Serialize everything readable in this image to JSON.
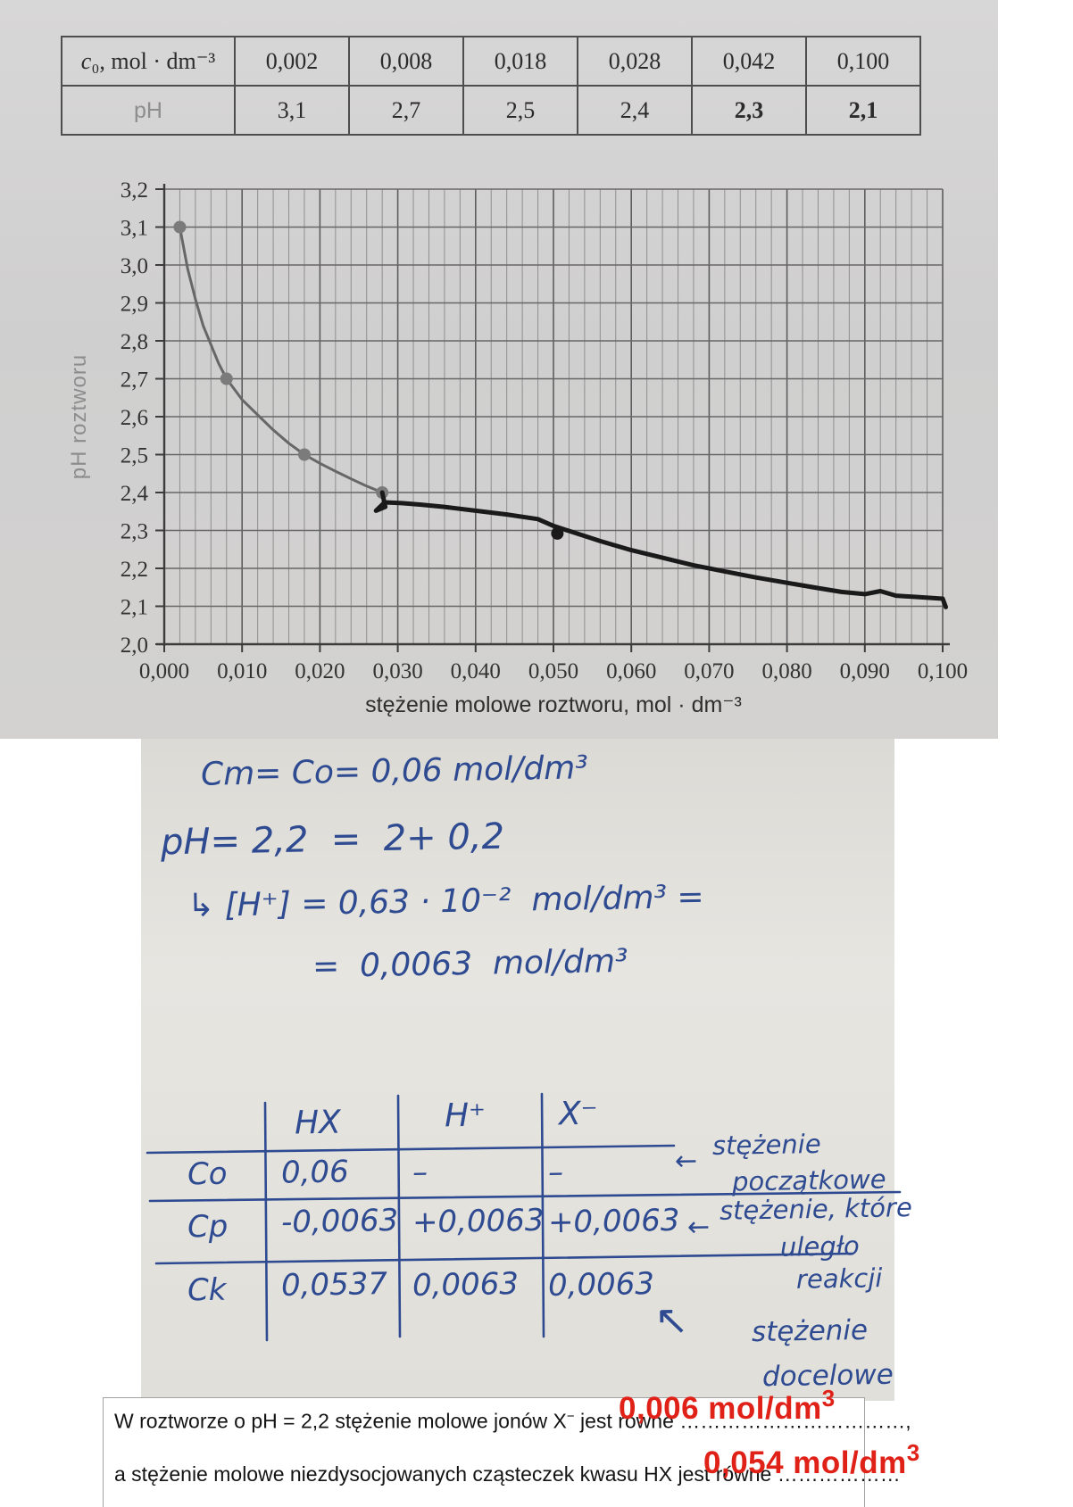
{
  "top_table": {
    "header": {
      "sym": "c",
      "rest": "₀, mol · dm⁻³"
    },
    "c0_values": [
      "0,002",
      "0,008",
      "0,018",
      "0,028",
      "0,042",
      "0,100"
    ],
    "ph_label": "pH",
    "ph_values": [
      {
        "v": "3,1"
      },
      {
        "v": "2,7"
      },
      {
        "v": "2,5"
      },
      {
        "v": "2,4"
      },
      {
        "v": "2,3",
        "red": true
      },
      {
        "v": "2,1",
        "red": true
      }
    ],
    "red_color": "#e02117"
  },
  "chart_data": {
    "type": "line",
    "title": "",
    "xlabel": "stężenie molowe roztworu, mol · dm⁻³",
    "ylabel": "pH roztworu",
    "xlim": [
      0.0,
      0.1
    ],
    "ylim": [
      2.0,
      3.2
    ],
    "x_minor_step": 0.002,
    "x_major_step": 0.01,
    "y_major_step": 0.1,
    "grid": true,
    "legend": false,
    "x_tick_labels": [
      "0,000",
      "0,010",
      "0,020",
      "0,030",
      "0,040",
      "0,050",
      "0,060",
      "0,070",
      "0,080",
      "0,090",
      "0,100"
    ],
    "y_tick_labels": [
      "2,0",
      "2,1",
      "2,2",
      "2,3",
      "2,4",
      "2,5",
      "2,6",
      "2,7",
      "2,8",
      "2,9",
      "3,0",
      "3,1",
      "3,2"
    ],
    "series": [
      {
        "name": "printed curve (measured points)",
        "color": "#676767",
        "marker_color": "#7b7b7b",
        "width": 3,
        "markers": true,
        "points": [
          [
            0.002,
            3.1
          ],
          [
            0.008,
            2.7
          ],
          [
            0.018,
            2.5
          ],
          [
            0.028,
            2.4
          ]
        ],
        "shape_points": [
          [
            0.002,
            3.1
          ],
          [
            0.003,
            2.99
          ],
          [
            0.004,
            2.91
          ],
          [
            0.005,
            2.84
          ],
          [
            0.006,
            2.79
          ],
          [
            0.007,
            2.74
          ],
          [
            0.008,
            2.7
          ],
          [
            0.01,
            2.645
          ],
          [
            0.012,
            2.605
          ],
          [
            0.014,
            2.565
          ],
          [
            0.016,
            2.53
          ],
          [
            0.018,
            2.5
          ],
          [
            0.02,
            2.477
          ],
          [
            0.022,
            2.456
          ],
          [
            0.024,
            2.436
          ],
          [
            0.026,
            2.417
          ],
          [
            0.028,
            2.4
          ]
        ]
      },
      {
        "name": "hand-drawn extension",
        "color": "#1a1a1a",
        "width": 5,
        "markers": false,
        "extra_marker": [
          0.0505,
          2.292
        ],
        "points": [
          [
            0.028,
            2.4
          ],
          [
            0.0284,
            2.362
          ],
          [
            0.0272,
            2.352
          ],
          [
            0.0283,
            2.374
          ],
          [
            0.0305,
            2.372
          ],
          [
            0.033,
            2.368
          ],
          [
            0.036,
            2.362
          ],
          [
            0.04,
            2.352
          ],
          [
            0.044,
            2.342
          ],
          [
            0.048,
            2.33
          ],
          [
            0.05,
            2.312
          ],
          [
            0.053,
            2.292
          ],
          [
            0.056,
            2.272
          ],
          [
            0.06,
            2.248
          ],
          [
            0.064,
            2.228
          ],
          [
            0.068,
            2.208
          ],
          [
            0.072,
            2.192
          ],
          [
            0.076,
            2.176
          ],
          [
            0.08,
            2.162
          ],
          [
            0.084,
            2.148
          ],
          [
            0.087,
            2.138
          ],
          [
            0.09,
            2.132
          ],
          [
            0.092,
            2.14
          ],
          [
            0.094,
            2.128
          ],
          [
            0.097,
            2.124
          ],
          [
            0.1,
            2.12
          ],
          [
            0.1004,
            2.098
          ]
        ]
      }
    ]
  },
  "handwritten": {
    "ink_color": "#2e4a91",
    "work_lines": [
      "Cm= Co= 0,06 mol/dm³",
      "pH= 2,2  =  2+ 0,2",
      "↳ [H⁺] = 0,63 · 10⁻²  mol/dm³ =",
      "=  0,0063  mol/dm³"
    ],
    "ice_table": {
      "col_headers": [
        "HX",
        "H⁺",
        "X⁻"
      ],
      "rows": [
        {
          "label": "Co",
          "cells": [
            "0,06",
            "–",
            "–"
          ]
        },
        {
          "label": "Cp",
          "cells": [
            "-0,0063",
            "+0,0063",
            "+0,0063"
          ]
        },
        {
          "label": "Ck",
          "cells": [
            "0,0537",
            "0,0063",
            "0,0063"
          ]
        }
      ]
    },
    "annotations": [
      {
        "arrow": "←",
        "lines": [
          "stężenie",
          "początkowe"
        ]
      },
      {
        "arrow": "←",
        "lines": [
          "stężenie, które",
          "uległo",
          "reakcji"
        ]
      },
      {
        "arrow": "↖",
        "lines": [
          "stężenie",
          "docelowe"
        ]
      }
    ]
  },
  "answers": {
    "line1_prefix": "W roztworze o pH = 2,2 stężenie molowe jonów X",
    "line1_sup": "−",
    "line1_mid": " jest równe ",
    "line1_dots": "……………………………,",
    "line2_prefix": "a stężenie molowe niezdysocjowanych cząsteczek kwasu HX jest równe ",
    "line2_dots": "………………",
    "answer1": "0,006 mol/dm",
    "answer1_sup": "3",
    "answer2": "0,054 mol/dm",
    "answer2_sup": "3",
    "red_color": "#e02117"
  }
}
